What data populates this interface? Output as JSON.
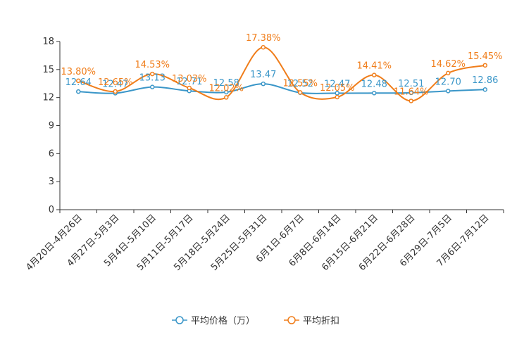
{
  "chart_data": {
    "type": "line",
    "categories": [
      "4月20日-4月26日",
      "4月27日-5月3日",
      "5月4日-5月10日",
      "5月11日-5月17日",
      "5月18日-5月24日",
      "5月25日-5月31日",
      "6月1日-6月7日",
      "6月8日-6月14日",
      "6月15日-6月21日",
      "6月22日-6月28日",
      "6月29日-7月5日",
      "7月6日-7月12日"
    ],
    "ylim": [
      0,
      18
    ],
    "yticks": [
      0,
      3,
      6,
      9,
      12,
      15,
      18
    ],
    "series": [
      {
        "name": "平均价格（万）",
        "color": "#3a96c8",
        "values": [
          12.64,
          12.47,
          13.13,
          12.71,
          12.58,
          13.47,
          12.52,
          12.47,
          12.48,
          12.51,
          12.7,
          12.86
        ],
        "labels": [
          "12.64",
          "12.47",
          "13.13",
          "12.71",
          "12.58",
          "13.47",
          "12.52",
          "12.47",
          "12.48",
          "12.51",
          "12.70",
          "12.86"
        ]
      },
      {
        "name": "平均折扣",
        "color": "#f07d1a",
        "values": [
          13.8,
          12.65,
          14.53,
          13.03,
          12.02,
          17.38,
          12.55,
          12.05,
          14.41,
          11.64,
          14.62,
          15.45
        ],
        "labels": [
          "13.80%",
          "12.65%",
          "14.53%",
          "13.03%",
          "12.02%",
          "17.38%",
          "12.55%",
          "12.05%",
          "14.41%",
          "11.64%",
          "14.62%",
          "15.45%"
        ]
      }
    ],
    "legend": [
      "平均价格（万）",
      "平均折扣"
    ],
    "legend_position": "bottom-center"
  }
}
